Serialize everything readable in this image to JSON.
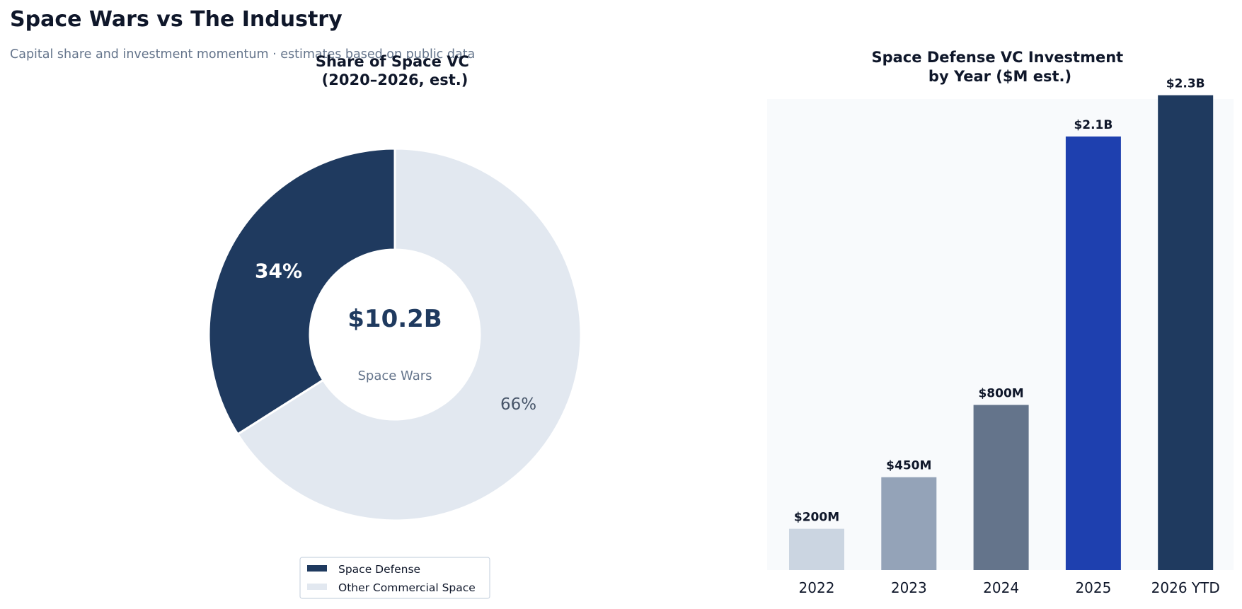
{
  "page": {
    "title": "Space Wars vs The Industry",
    "subtitle": "Capital share and investment momentum · estimates based on public data"
  },
  "chart_data": [
    {
      "type": "pie",
      "style": "donut",
      "title": "Share of Space VC\n(2020–2026, est.)",
      "center_value": "$10.2B",
      "center_label": "Space Wars",
      "slices": [
        {
          "label": "Space Defense",
          "value": 34,
          "display": "34%",
          "color": "#1f3a5f"
        },
        {
          "label": "Other Commercial Space",
          "value": 66,
          "display": "66%",
          "color": "#e2e8f0"
        }
      ],
      "legend": "bottom-center"
    },
    {
      "type": "bar",
      "title": "Space Defense VC Investment\nby Year ($M est.)",
      "categories": [
        "2022",
        "2023",
        "2024",
        "2025",
        "2026 YTD"
      ],
      "values": [
        200,
        450,
        800,
        2100,
        2300
      ],
      "value_labels": [
        "$200M",
        "$450M",
        "$800M",
        "$2.1B",
        "$2.3B"
      ],
      "colors": [
        "#cbd5e1",
        "#94a3b8",
        "#64748b",
        "#1e40af",
        "#1f3a5f"
      ],
      "ylim": [
        0,
        2600
      ],
      "grid": false
    }
  ]
}
